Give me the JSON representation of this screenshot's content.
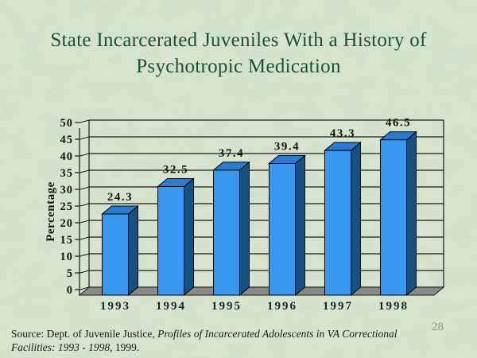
{
  "slide": {
    "title": {
      "line1": "State Incarcerated Juveniles With a History of",
      "line2": "Psychotropic Medication"
    },
    "page_number": "28",
    "source": {
      "normal_prefix": "Source: Dept. of Juvenile Justice, ",
      "italic_part1": "Profiles of Incarcerated Adolescents in VA Correctional",
      "italic_part2": "Facilities: 1993 - 1998",
      "normal_suffix": ", 1999."
    }
  },
  "chart_data": {
    "type": "bar",
    "style": "3d-column",
    "title": "",
    "xlabel": "",
    "ylabel": "Percentage",
    "categories": [
      "1993",
      "1994",
      "1995",
      "1996",
      "1997",
      "1998"
    ],
    "values": [
      24.3,
      32.5,
      37.4,
      39.4,
      43.3,
      46.5
    ],
    "data_labels": [
      "24.3",
      "32.5",
      "37.4",
      "39.4",
      "43.3",
      "46.5"
    ],
    "ylim": [
      0,
      50
    ],
    "ytick_step": 5,
    "grid": true,
    "legend": "none",
    "colors": {
      "bar_front": "#3898F0",
      "bar_top": "#2B7CCE",
      "bar_side": "#17517F",
      "floor": "#8A8A8A",
      "gridline": "#1A1A1A",
      "axis_text": "#141414",
      "category_text": "#17282A"
    }
  },
  "theme": {
    "background": "#cbdcc6",
    "title_color": "#1E4F38",
    "source_color": "#1B1B1B",
    "page_number_color": "#87927F"
  }
}
